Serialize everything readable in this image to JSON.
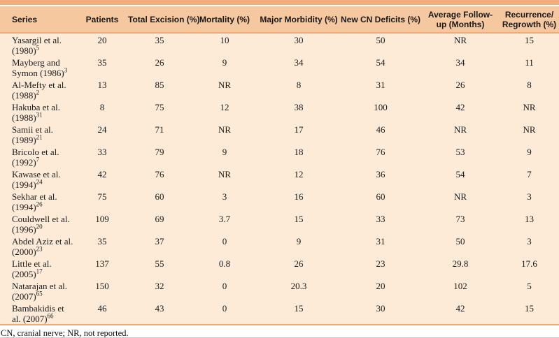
{
  "colors": {
    "accent_band": "#f1ab7d",
    "header_bg": "#f6c8a0",
    "body_bg": "#fdead7",
    "rule": "#f0a97a",
    "text": "#1c1c1c"
  },
  "table": {
    "columns": [
      {
        "key": "series",
        "label": "Series",
        "align": "left"
      },
      {
        "key": "patients",
        "label": "Patients",
        "align": "center"
      },
      {
        "key": "total-excision",
        "label": "Total Excision (%)",
        "align": "center"
      },
      {
        "key": "mortality",
        "label": "Mortality (%)",
        "align": "center"
      },
      {
        "key": "major-morbidity",
        "label": "Major Morbidity (%)",
        "align": "center"
      },
      {
        "key": "new-cn-deficits",
        "label": "New CN Deficits (%)",
        "align": "center"
      },
      {
        "key": "avg-followup",
        "label": "Average Follow-\nup (Months)",
        "align": "center"
      },
      {
        "key": "recurrence-regrowth",
        "label": "Recurrence/\nRegrowth (%)",
        "align": "center"
      }
    ],
    "rows": [
      {
        "series": "Yasargil et al. (1980)",
        "ref": "5",
        "values": [
          "20",
          "35",
          "10",
          "30",
          "50",
          "NR",
          "15"
        ]
      },
      {
        "series": "Mayberg and Symon (1986)",
        "ref": "3",
        "values": [
          "35",
          "26",
          "9",
          "34",
          "54",
          "34",
          "11"
        ]
      },
      {
        "series": "Al-Mefty et al. (1988)",
        "ref": "2",
        "values": [
          "13",
          "85",
          "NR",
          "8",
          "31",
          "26",
          "8"
        ]
      },
      {
        "series": "Hakuba et al. (1988)",
        "ref": "31",
        "values": [
          "8",
          "75",
          "12",
          "38",
          "100",
          "42",
          "NR"
        ]
      },
      {
        "series": "Samii et al. (1989)",
        "ref": "21",
        "values": [
          "24",
          "71",
          "NR",
          "17",
          "46",
          "NR",
          "NR"
        ]
      },
      {
        "series": "Bricolo et al. (1992)",
        "ref": "7",
        "values": [
          "33",
          "79",
          "9",
          "18",
          "76",
          "53",
          "9"
        ]
      },
      {
        "series": "Kawase et al. (1994)",
        "ref": "24",
        "values": [
          "42",
          "76",
          "NR",
          "12",
          "36",
          "54",
          "7"
        ]
      },
      {
        "series": "Sekhar et al. (1994)",
        "ref": "26",
        "values": [
          "75",
          "60",
          "3",
          "16",
          "60",
          "NR",
          "3"
        ]
      },
      {
        "series": "Couldwell et al. (1996)",
        "ref": "20",
        "values": [
          "109",
          "69",
          "3.7",
          "15",
          "33",
          "73",
          "13"
        ]
      },
      {
        "series": "Abdel Aziz et al. (2000)",
        "ref": "23",
        "values": [
          "35",
          "37",
          "0",
          "9",
          "31",
          "50",
          "3"
        ]
      },
      {
        "series": "Little et al. (2005)",
        "ref": "17",
        "values": [
          "137",
          "55",
          "0.8",
          "26",
          "23",
          "29.8",
          "17.6"
        ]
      },
      {
        "series": "Natarajan et al. (2007)",
        "ref": "65",
        "values": [
          "150",
          "32",
          "0",
          "20.3",
          "20",
          "102",
          "5"
        ]
      },
      {
        "series": "Bambakidis et al. (2007)",
        "ref": "66",
        "values": [
          "46",
          "43",
          "0",
          "15",
          "30",
          "42",
          "15"
        ]
      }
    ],
    "footnote": "CN, cranial nerve; NR, not reported."
  }
}
